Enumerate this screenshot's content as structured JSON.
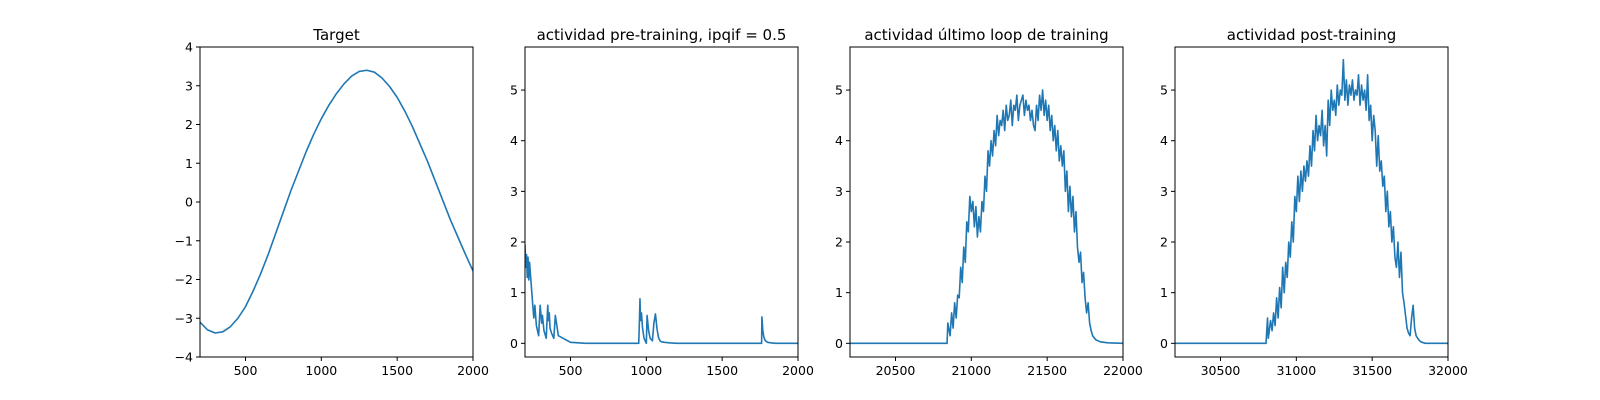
{
  "colors": {
    "series": "#1f77b4"
  },
  "chart_data": [
    {
      "type": "line",
      "title": "Target",
      "xlim": [
        200,
        2000
      ],
      "ylim": [
        -4,
        4
      ],
      "xticks": [
        500,
        1000,
        1500,
        2000
      ],
      "yticks": [
        -4,
        -3,
        -2,
        -1,
        0,
        1,
        2,
        3,
        4
      ],
      "xtick_labels": [
        "500",
        "1000",
        "1500",
        "2000"
      ],
      "ytick_labels": [
        "−4",
        "−3",
        "−2",
        "−1",
        "0",
        "1",
        "2",
        "3",
        "4"
      ],
      "series": [
        {
          "x": [
            200,
            250,
            300,
            350,
            400,
            450,
            500,
            550,
            600,
            650,
            700,
            750,
            800,
            850,
            900,
            950,
            1000,
            1050,
            1100,
            1150,
            1200,
            1250,
            1300,
            1350,
            1400,
            1450,
            1500,
            1550,
            1600,
            1650,
            1700,
            1750,
            1800,
            1850,
            1900,
            1950,
            2000
          ],
          "values": [
            -3.1,
            -3.3,
            -3.38,
            -3.35,
            -3.22,
            -3.0,
            -2.7,
            -2.3,
            -1.85,
            -1.35,
            -0.8,
            -0.25,
            0.3,
            0.8,
            1.3,
            1.75,
            2.15,
            2.5,
            2.8,
            3.05,
            3.25,
            3.37,
            3.4,
            3.35,
            3.2,
            2.98,
            2.7,
            2.35,
            1.95,
            1.5,
            1.05,
            0.55,
            0.05,
            -0.45,
            -0.9,
            -1.35,
            -1.78
          ]
        }
      ]
    },
    {
      "type": "line",
      "title": "actividad pre-training, ipqif = 0.5",
      "xlim": [
        200,
        2000
      ],
      "ylim": [
        -0.27,
        5.85
      ],
      "xticks": [
        500,
        1000,
        1500,
        2000
      ],
      "yticks": [
        0,
        1,
        2,
        3,
        4,
        5
      ],
      "xtick_labels": [
        "500",
        "1000",
        "1500",
        "2000"
      ],
      "ytick_labels": [
        "0",
        "1",
        "2",
        "3",
        "4",
        "5"
      ],
      "series": [
        {
          "x": [
            200,
            205,
            210,
            215,
            220,
            225,
            230,
            240,
            250,
            258,
            265,
            275,
            290,
            300,
            310,
            315,
            325,
            340,
            350,
            355,
            360,
            365,
            375,
            390,
            400,
            420,
            500,
            600,
            700,
            800,
            900,
            950,
            955,
            958,
            962,
            968,
            975,
            985,
            1000,
            1005,
            1010,
            1015,
            1025,
            1040,
            1050,
            1060,
            1070,
            1075,
            1080,
            1090,
            1100,
            1120,
            1150,
            1200,
            1300,
            1400,
            1500,
            1600,
            1700,
            1760,
            1762,
            1765,
            1768,
            1775,
            1785,
            1800,
            1820,
            1850,
            1900,
            1950,
            2000
          ],
          "values": [
            1.95,
            1.5,
            1.75,
            1.3,
            1.7,
            1.25,
            1.6,
            1.2,
            0.8,
            0.5,
            0.75,
            0.35,
            0.15,
            0.75,
            0.4,
            0.55,
            0.25,
            0.1,
            0.75,
            0.45,
            0.6,
            0.3,
            0.2,
            0.1,
            0.55,
            0.15,
            0.02,
            0.0,
            0.0,
            0.0,
            0.0,
            0.0,
            0.5,
            0.88,
            0.45,
            0.6,
            0.3,
            0.1,
            0.0,
            0.55,
            0.4,
            0.25,
            0.1,
            0.05,
            0.4,
            0.58,
            0.3,
            0.2,
            0.12,
            0.05,
            0.03,
            0.02,
            0.01,
            0.0,
            0.0,
            0.0,
            0.0,
            0.0,
            0.0,
            0.0,
            0.52,
            0.4,
            0.25,
            0.12,
            0.05,
            0.02,
            0.01,
            0.0,
            0.0,
            0.0,
            0.0
          ]
        }
      ]
    },
    {
      "type": "line",
      "title": "actividad último loop de training",
      "xlim": [
        20200,
        22000
      ],
      "ylim": [
        -0.27,
        5.85
      ],
      "xticks": [
        20500,
        21000,
        21500,
        22000
      ],
      "yticks": [
        0,
        1,
        2,
        3,
        4,
        5
      ],
      "xtick_labels": [
        "20500",
        "21000",
        "21500",
        "22000"
      ],
      "ytick_labels": [
        "0",
        "1",
        "2",
        "3",
        "4",
        "5"
      ],
      "series": [
        {
          "x": [
            20200,
            20400,
            20600,
            20800,
            20840,
            20845,
            20860,
            20870,
            20880,
            20890,
            20900,
            20910,
            20920,
            20930,
            20940,
            20950,
            20960,
            20970,
            20980,
            20990,
            21000,
            21010,
            21020,
            21030,
            21040,
            21050,
            21060,
            21070,
            21080,
            21090,
            21100,
            21110,
            21120,
            21130,
            21140,
            21150,
            21160,
            21170,
            21180,
            21190,
            21200,
            21210,
            21220,
            21230,
            21240,
            21250,
            21260,
            21270,
            21280,
            21290,
            21300,
            21310,
            21320,
            21330,
            21340,
            21350,
            21360,
            21370,
            21380,
            21390,
            21400,
            21410,
            21420,
            21430,
            21440,
            21450,
            21460,
            21470,
            21480,
            21490,
            21500,
            21510,
            21520,
            21530,
            21540,
            21550,
            21560,
            21570,
            21580,
            21590,
            21600,
            21610,
            21620,
            21630,
            21640,
            21650,
            21660,
            21670,
            21680,
            21690,
            21700,
            21710,
            21720,
            21730,
            21740,
            21750,
            21760,
            21770,
            21780,
            21790,
            21800,
            21820,
            21850,
            21900,
            22000
          ],
          "values": [
            0,
            0,
            0,
            0,
            0,
            0.4,
            0.15,
            0.6,
            0.3,
            0.8,
            0.5,
            0.95,
            0.9,
            1.5,
            1.2,
            1.9,
            1.6,
            2.4,
            2.2,
            2.9,
            2.6,
            2.8,
            2.3,
            2.7,
            2.1,
            2.5,
            2.2,
            2.8,
            2.6,
            3.3,
            3.0,
            3.8,
            3.5,
            4.0,
            3.7,
            4.2,
            3.9,
            4.5,
            4.1,
            4.4,
            4.3,
            4.6,
            4.2,
            4.7,
            4.4,
            4.5,
            4.8,
            4.3,
            4.7,
            4.6,
            4.9,
            4.4,
            4.7,
            4.8,
            4.9,
            4.5,
            4.8,
            4.6,
            4.7,
            4.4,
            4.6,
            4.3,
            4.2,
            4.7,
            4.4,
            4.9,
            4.6,
            5.0,
            4.5,
            4.8,
            4.4,
            4.7,
            4.2,
            4.5,
            4.0,
            4.3,
            3.8,
            4.2,
            3.6,
            3.9,
            3.5,
            3.8,
            3.0,
            3.4,
            2.6,
            3.1,
            2.5,
            2.9,
            2.2,
            2.6,
            1.9,
            1.6,
            1.8,
            1.2,
            1.4,
            0.9,
            0.6,
            0.8,
            0.4,
            0.25,
            0.15,
            0.07,
            0.03,
            0.01,
            0.0
          ]
        }
      ]
    },
    {
      "type": "line",
      "title": "actividad post-training",
      "xlim": [
        30200,
        32000
      ],
      "ylim": [
        -0.27,
        5.85
      ],
      "xticks": [
        30500,
        31000,
        31500,
        32000
      ],
      "yticks": [
        0,
        1,
        2,
        3,
        4,
        5
      ],
      "xtick_labels": [
        "30500",
        "31000",
        "31500",
        "32000"
      ],
      "ytick_labels": [
        "0",
        "1",
        "2",
        "3",
        "4",
        "5"
      ],
      "series": [
        {
          "x": [
            30200,
            30400,
            30600,
            30800,
            30810,
            30815,
            30830,
            30840,
            30850,
            30860,
            30870,
            30880,
            30890,
            30900,
            30910,
            30920,
            30930,
            30940,
            30950,
            30960,
            30970,
            30980,
            30990,
            31000,
            31010,
            31020,
            31030,
            31040,
            31050,
            31060,
            31070,
            31080,
            31090,
            31100,
            31110,
            31120,
            31130,
            31140,
            31150,
            31160,
            31170,
            31180,
            31190,
            31200,
            31210,
            31220,
            31230,
            31240,
            31250,
            31260,
            31270,
            31280,
            31290,
            31300,
            31310,
            31320,
            31330,
            31340,
            31350,
            31360,
            31370,
            31380,
            31390,
            31400,
            31410,
            31420,
            31430,
            31440,
            31450,
            31460,
            31470,
            31480,
            31490,
            31500,
            31510,
            31520,
            31530,
            31540,
            31550,
            31560,
            31570,
            31580,
            31590,
            31600,
            31610,
            31620,
            31630,
            31640,
            31650,
            31660,
            31670,
            31680,
            31690,
            31700,
            31710,
            31720,
            31730,
            31740,
            31750,
            31760,
            31770,
            31780,
            31790,
            31800,
            31810,
            31820,
            31830,
            31840,
            31850,
            31860,
            31880,
            31900,
            31950,
            32000
          ],
          "values": [
            0,
            0,
            0,
            0,
            0.5,
            0.1,
            0.45,
            0.25,
            0.6,
            0.35,
            0.9,
            0.5,
            1.1,
            0.7,
            1.5,
            1.0,
            1.6,
            1.3,
            2.0,
            1.7,
            2.4,
            2.0,
            2.9,
            2.6,
            3.3,
            2.8,
            3.4,
            3.0,
            3.5,
            3.2,
            3.6,
            3.3,
            3.9,
            3.5,
            4.2,
            3.8,
            4.5,
            4.0,
            4.3,
            4.1,
            4.6,
            3.9,
            4.3,
            3.7,
            4.8,
            4.3,
            5.0,
            4.6,
            4.8,
            4.5,
            5.1,
            4.7,
            5.0,
            4.9,
            5.6,
            4.8,
            5.2,
            4.7,
            5.1,
            4.9,
            5.2,
            4.8,
            5.0,
            4.9,
            5.3,
            4.7,
            5.1,
            4.8,
            5.0,
            4.6,
            5.3,
            4.4,
            4.7,
            4.0,
            4.5,
            4.2,
            3.5,
            4.1,
            3.4,
            3.6,
            3.1,
            3.3,
            2.6,
            3.0,
            2.3,
            2.6,
            2.0,
            2.3,
            1.7,
            1.5,
            2.0,
            1.3,
            1.8,
            1.0,
            0.8,
            0.55,
            0.3,
            0.2,
            0.15,
            0.5,
            0.75,
            0.3,
            0.15,
            0.1,
            0.06,
            0.03,
            0.02,
            0.01,
            0.0,
            0.0,
            0.0,
            0.0,
            0.0,
            0.0
          ]
        }
      ]
    }
  ]
}
